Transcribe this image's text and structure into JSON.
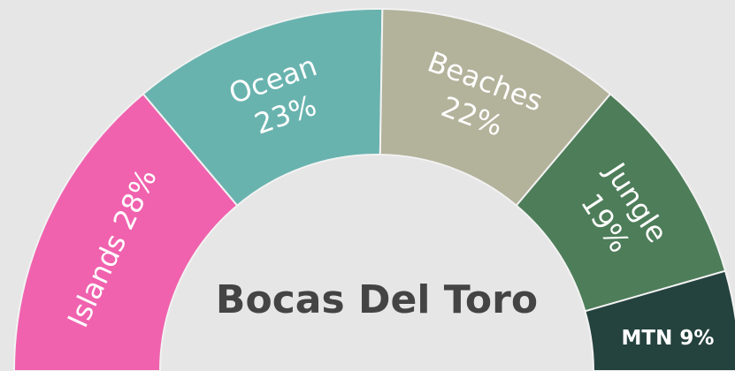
{
  "chart_data": {
    "type": "semi-donut",
    "title": "Bocas Del Toro",
    "categories": [
      "Islands",
      "Ocean",
      "Beaches",
      "Jungle",
      "MTN"
    ],
    "values": [
      28,
      23,
      22,
      19,
      9
    ],
    "value_labels": [
      "28%",
      "23%",
      "22%",
      "19%",
      "9%"
    ],
    "colors": [
      "#f062ae",
      "#69b3af",
      "#b3b29b",
      "#4d7d59",
      "#24423e"
    ]
  }
}
